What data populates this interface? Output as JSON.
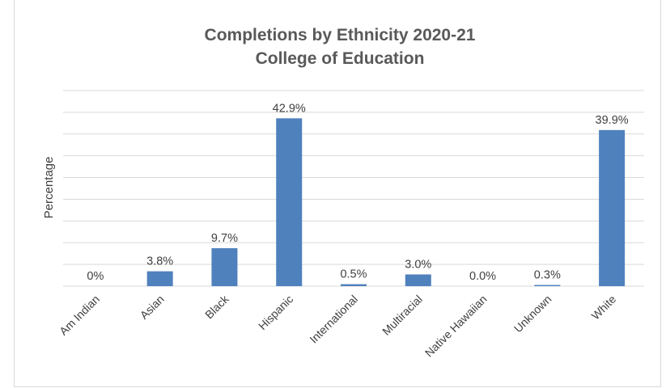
{
  "chart_data": {
    "type": "bar",
    "title": "Completions by Ethnicity 2020-21",
    "subtitle": "College of Education",
    "xlabel": "",
    "ylabel": "Percentage",
    "categories": [
      "Am Indian",
      "Asian",
      "Black",
      "Hispanic",
      "International",
      "Multiracial",
      "Native Hawaiian",
      "Unknown",
      "White"
    ],
    "values": [
      0,
      3.8,
      9.7,
      42.9,
      0.5,
      3.0,
      0.0,
      0.3,
      39.9
    ],
    "data_labels": [
      "0%",
      "3.8%",
      "9.7%",
      "42.9%",
      "0.5%",
      "3.0%",
      "0.0%",
      "0.3%",
      "39.9%"
    ],
    "ylim": [
      0,
      50
    ],
    "grid": true,
    "legend": "none",
    "bar_color": "#4f81bd",
    "grid_color": "#d9d9d9"
  }
}
